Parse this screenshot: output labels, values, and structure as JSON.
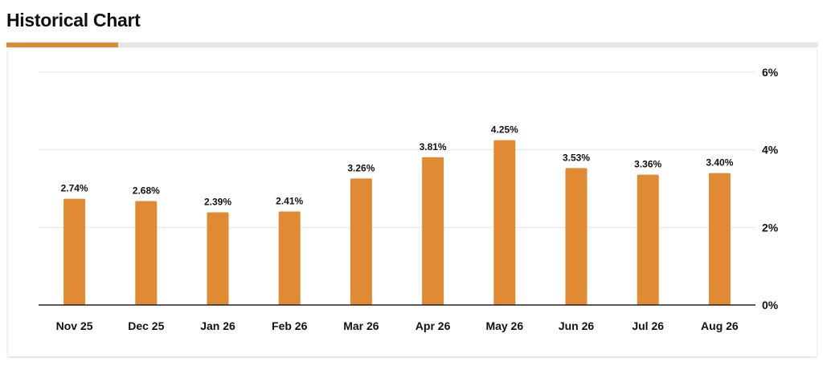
{
  "header": {
    "title": "Historical Chart"
  },
  "colors": {
    "accent": "#e08a33",
    "bar": "#e08a33",
    "grid": "#e5e5e5",
    "axis": "#222222",
    "text": "#111111"
  },
  "chart_data": {
    "type": "bar",
    "title": "",
    "xlabel": "",
    "ylabel": "",
    "categories": [
      "Nov 25",
      "Dec 25",
      "Jan 26",
      "Feb 26",
      "Mar 26",
      "Apr 26",
      "May 26",
      "Jun 26",
      "Jul 26",
      "Aug 26"
    ],
    "values": [
      2.74,
      2.68,
      2.39,
      2.41,
      3.26,
      3.81,
      4.25,
      3.53,
      3.36,
      3.4
    ],
    "data_labels": [
      "2.74%",
      "2.68%",
      "2.39%",
      "2.41%",
      "3.26%",
      "3.81%",
      "4.25%",
      "3.53%",
      "3.36%",
      "3.40%"
    ],
    "ylim": [
      0,
      6
    ],
    "y_ticks": [
      0,
      2,
      4,
      6
    ],
    "y_tick_labels": [
      "0%",
      "2%",
      "4%",
      "6%"
    ],
    "y_axis_side": "right",
    "grid": true,
    "legend": "none"
  }
}
